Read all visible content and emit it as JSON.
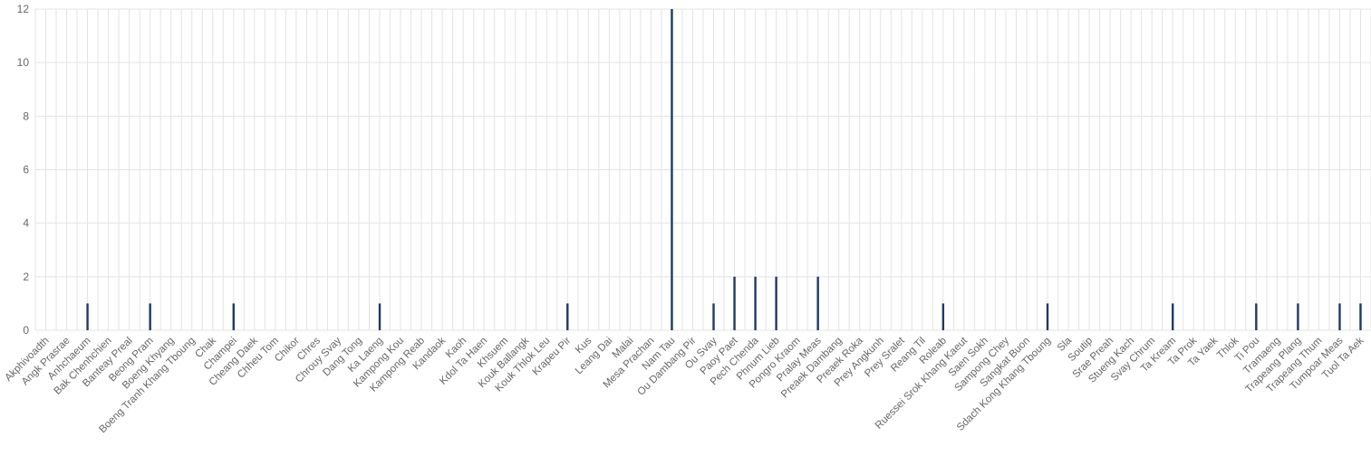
{
  "chart_data": {
    "type": "bar",
    "bar_color": "#1f3a63",
    "grid": true,
    "ylim": [
      0,
      12
    ],
    "yticks": [
      "0",
      "2",
      "4",
      "6",
      "8",
      "10",
      "12"
    ],
    "categories": [
      "Akphivoadth",
      "Angk Prasrae",
      "Anhchaeum",
      "Bak Chenhchien",
      "Banteay Preal",
      "Beong Pram",
      "Boeng Khyang",
      "Boeng Tranh Khang Tboung",
      "Chak",
      "Champei",
      "Cheang Daek",
      "Chheu Tom",
      "Chikor",
      "Chres",
      "Chrouy Svay",
      "Dang Tong",
      "Ka Laeng",
      "Kampong Kou",
      "Kampong Reab",
      "Kandaok",
      "Kaoh",
      "Kdol Ta Haen",
      "Khsuem",
      "Kouk Ballangk",
      "Kouk Thlok Leu",
      "Krapeu Pir",
      "Kus",
      "Leang Dai",
      "Malai",
      "Mesa Prachan",
      "Nam Tau",
      "Ou Dambang Pir",
      "Ou Svay",
      "Paoy Paet",
      "Pech Chenda",
      "Phnum Lieb",
      "Pongro Kraom",
      "Pralay Meas",
      "Preaek Dambang",
      "Preaek Roka",
      "Prey Angkunh",
      "Prey Sralet",
      "Reang Til",
      "Roleab",
      "Ruessei Srok Khang Kaeut",
      "Saen Sokh",
      "Sampong Chey",
      "Sangkat Buon",
      "Sdach Kong Khang Tboung",
      "Sla",
      "Soutip",
      "Srae Preah",
      "Stueng Kach",
      "Svay Chrum",
      "Ta Kream",
      "Ta Prok",
      "Ta Yaek",
      "Thlok",
      "Ti Pou",
      "Tramaeng",
      "Trapeang Plang",
      "Trapeang Thum",
      "Tumpoar Meas",
      "Tuol Ta Aek"
    ],
    "values": [
      0,
      0,
      1,
      0,
      0,
      1,
      0,
      0,
      0,
      1,
      0,
      0,
      0,
      0,
      0,
      0,
      1,
      0,
      0,
      0,
      0,
      0,
      0,
      0,
      0,
      1,
      0,
      0,
      0,
      0,
      12,
      0,
      1,
      2,
      2,
      2,
      0,
      2,
      0,
      0,
      0,
      0,
      0,
      1,
      0,
      0,
      0,
      0,
      1,
      0,
      0,
      0,
      0,
      0,
      1,
      0,
      0,
      0,
      1,
      0,
      1,
      0,
      1,
      1
    ]
  }
}
